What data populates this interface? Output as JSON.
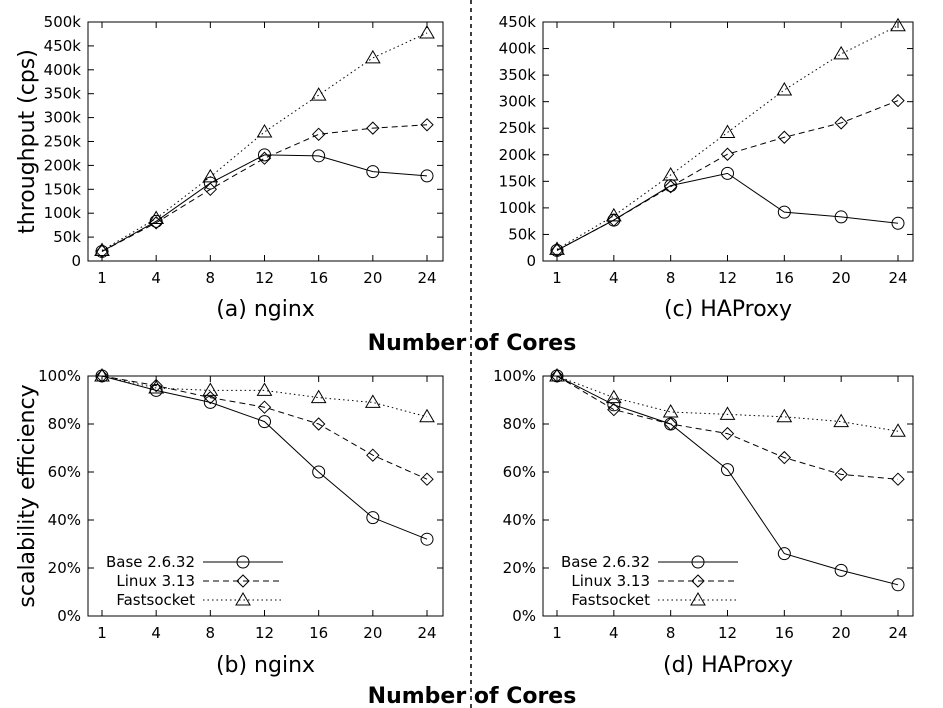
{
  "chart_data": [
    {
      "id": "a",
      "type": "line",
      "title": "(a) nginx",
      "ylabel": "throughput (cps)",
      "categories": [
        "1",
        "4",
        "8",
        "12",
        "16",
        "20",
        "24"
      ],
      "ylim": [
        0,
        500000
      ],
      "yticks": [
        0,
        50000,
        100000,
        150000,
        200000,
        250000,
        300000,
        350000,
        400000,
        450000,
        500000
      ],
      "ytick_labels": [
        "0",
        "50k",
        "100k",
        "150k",
        "200k",
        "250k",
        "300k",
        "350k",
        "400k",
        "450k",
        "500k"
      ],
      "legend": false,
      "series": [
        {
          "name": "Base 2.6.32",
          "marker": "circle",
          "dash": "solid",
          "values": [
            20000,
            83000,
            163000,
            222000,
            220000,
            187000,
            178000
          ]
        },
        {
          "name": "Linux 3.13",
          "marker": "diamond",
          "dash": "dashed",
          "values": [
            20000,
            80000,
            150000,
            215000,
            265000,
            278000,
            285000
          ]
        },
        {
          "name": "Fastsocket",
          "marker": "triangle",
          "dash": "dotted",
          "values": [
            22000,
            89000,
            176000,
            270000,
            347000,
            425000,
            477000
          ]
        }
      ]
    },
    {
      "id": "c",
      "type": "line",
      "title": "(c) HAProxy",
      "ylabel": "",
      "categories": [
        "1",
        "4",
        "8",
        "12",
        "16",
        "20",
        "24"
      ],
      "ylim": [
        0,
        450000
      ],
      "yticks": [
        0,
        50000,
        100000,
        150000,
        200000,
        250000,
        300000,
        350000,
        400000,
        450000
      ],
      "ytick_labels": [
        "0",
        "50k",
        "100k",
        "150k",
        "200k",
        "250k",
        "300k",
        "350k",
        "400k",
        "450k"
      ],
      "legend": false,
      "series": [
        {
          "name": "Base 2.6.32",
          "marker": "circle",
          "dash": "solid",
          "values": [
            20000,
            77000,
            142000,
            165000,
            92000,
            83000,
            71000
          ]
        },
        {
          "name": "Linux 3.13",
          "marker": "diamond",
          "dash": "dashed",
          "values": [
            20000,
            77000,
            140000,
            201000,
            233000,
            260000,
            302000
          ]
        },
        {
          "name": "Fastsocket",
          "marker": "triangle",
          "dash": "dotted",
          "values": [
            22000,
            85000,
            162000,
            242000,
            322000,
            390000,
            443000
          ]
        }
      ]
    },
    {
      "id": "b",
      "type": "line",
      "title": "(b) nginx",
      "ylabel": "scalability efficiency",
      "categories": [
        "1",
        "4",
        "8",
        "12",
        "16",
        "20",
        "24"
      ],
      "ylim": [
        0,
        100
      ],
      "yticks": [
        0,
        20,
        40,
        60,
        80,
        100
      ],
      "ytick_labels": [
        "0%",
        "20%",
        "40%",
        "60%",
        "80%",
        "100%"
      ],
      "legend": true,
      "series": [
        {
          "name": "Base 2.6.32",
          "marker": "circle",
          "dash": "solid",
          "values": [
            100,
            94,
            89,
            81,
            60,
            41,
            32
          ]
        },
        {
          "name": "Linux 3.13",
          "marker": "diamond",
          "dash": "dashed",
          "values": [
            100,
            96,
            91,
            87,
            80,
            67,
            57
          ]
        },
        {
          "name": "Fastsocket",
          "marker": "triangle",
          "dash": "dotted",
          "values": [
            100,
            95,
            94,
            94,
            91,
            89,
            83
          ]
        }
      ]
    },
    {
      "id": "d",
      "type": "line",
      "title": "(d) HAProxy",
      "ylabel": "",
      "categories": [
        "1",
        "4",
        "8",
        "12",
        "16",
        "20",
        "24"
      ],
      "ylim": [
        0,
        100
      ],
      "yticks": [
        0,
        20,
        40,
        60,
        80,
        100
      ],
      "ytick_labels": [
        "0%",
        "20%",
        "40%",
        "60%",
        "80%",
        "100%"
      ],
      "legend": true,
      "series": [
        {
          "name": "Base 2.6.32",
          "marker": "circle",
          "dash": "solid",
          "values": [
            100,
            88,
            80,
            61,
            26,
            19,
            13
          ]
        },
        {
          "name": "Linux 3.13",
          "marker": "diamond",
          "dash": "dashed",
          "values": [
            100,
            86,
            80,
            76,
            66,
            59,
            57
          ]
        },
        {
          "name": "Fastsocket",
          "marker": "triangle",
          "dash": "dotted",
          "values": [
            100,
            91,
            85,
            84,
            83,
            81,
            77
          ]
        }
      ]
    }
  ],
  "shared_xlabel": "Number of Cores"
}
